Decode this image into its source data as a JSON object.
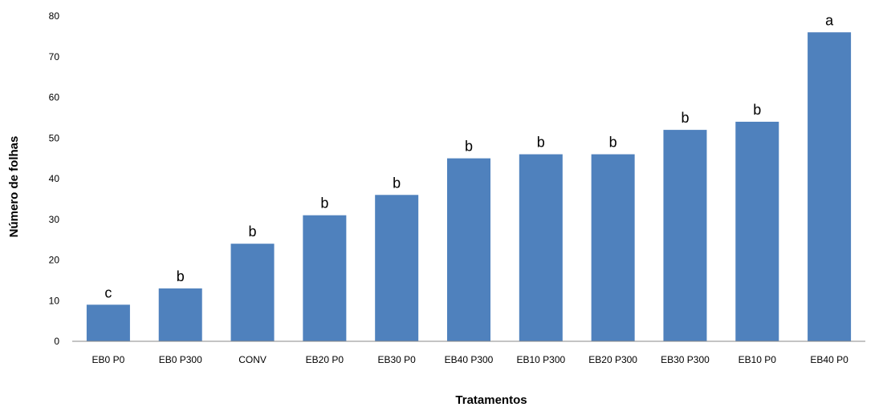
{
  "chart_data": {
    "type": "bar",
    "title": "",
    "xlabel": "Tratamentos",
    "ylabel": "Número de folhas",
    "categories": [
      "EB0 P0",
      "EB0 P300",
      "CONV",
      "EB20 P0",
      "EB30 P0",
      "EB40 P300",
      "EB10 P300",
      "EB20 P300",
      "EB30 P300",
      "EB10 P0",
      "EB40 P0"
    ],
    "values": [
      9,
      13,
      24,
      31,
      36,
      45,
      46,
      46,
      52,
      54,
      76
    ],
    "data_labels": [
      "c",
      "b",
      "b",
      "b",
      "b",
      "b",
      "b",
      "b",
      "b",
      "b",
      "a"
    ],
    "ylim": [
      0,
      80
    ],
    "yticks": [
      0,
      10,
      20,
      30,
      40,
      50,
      60,
      70,
      80
    ],
    "grid": false,
    "legend": "none",
    "bar_color": "#4F81BD",
    "axis_color": "#888888"
  }
}
